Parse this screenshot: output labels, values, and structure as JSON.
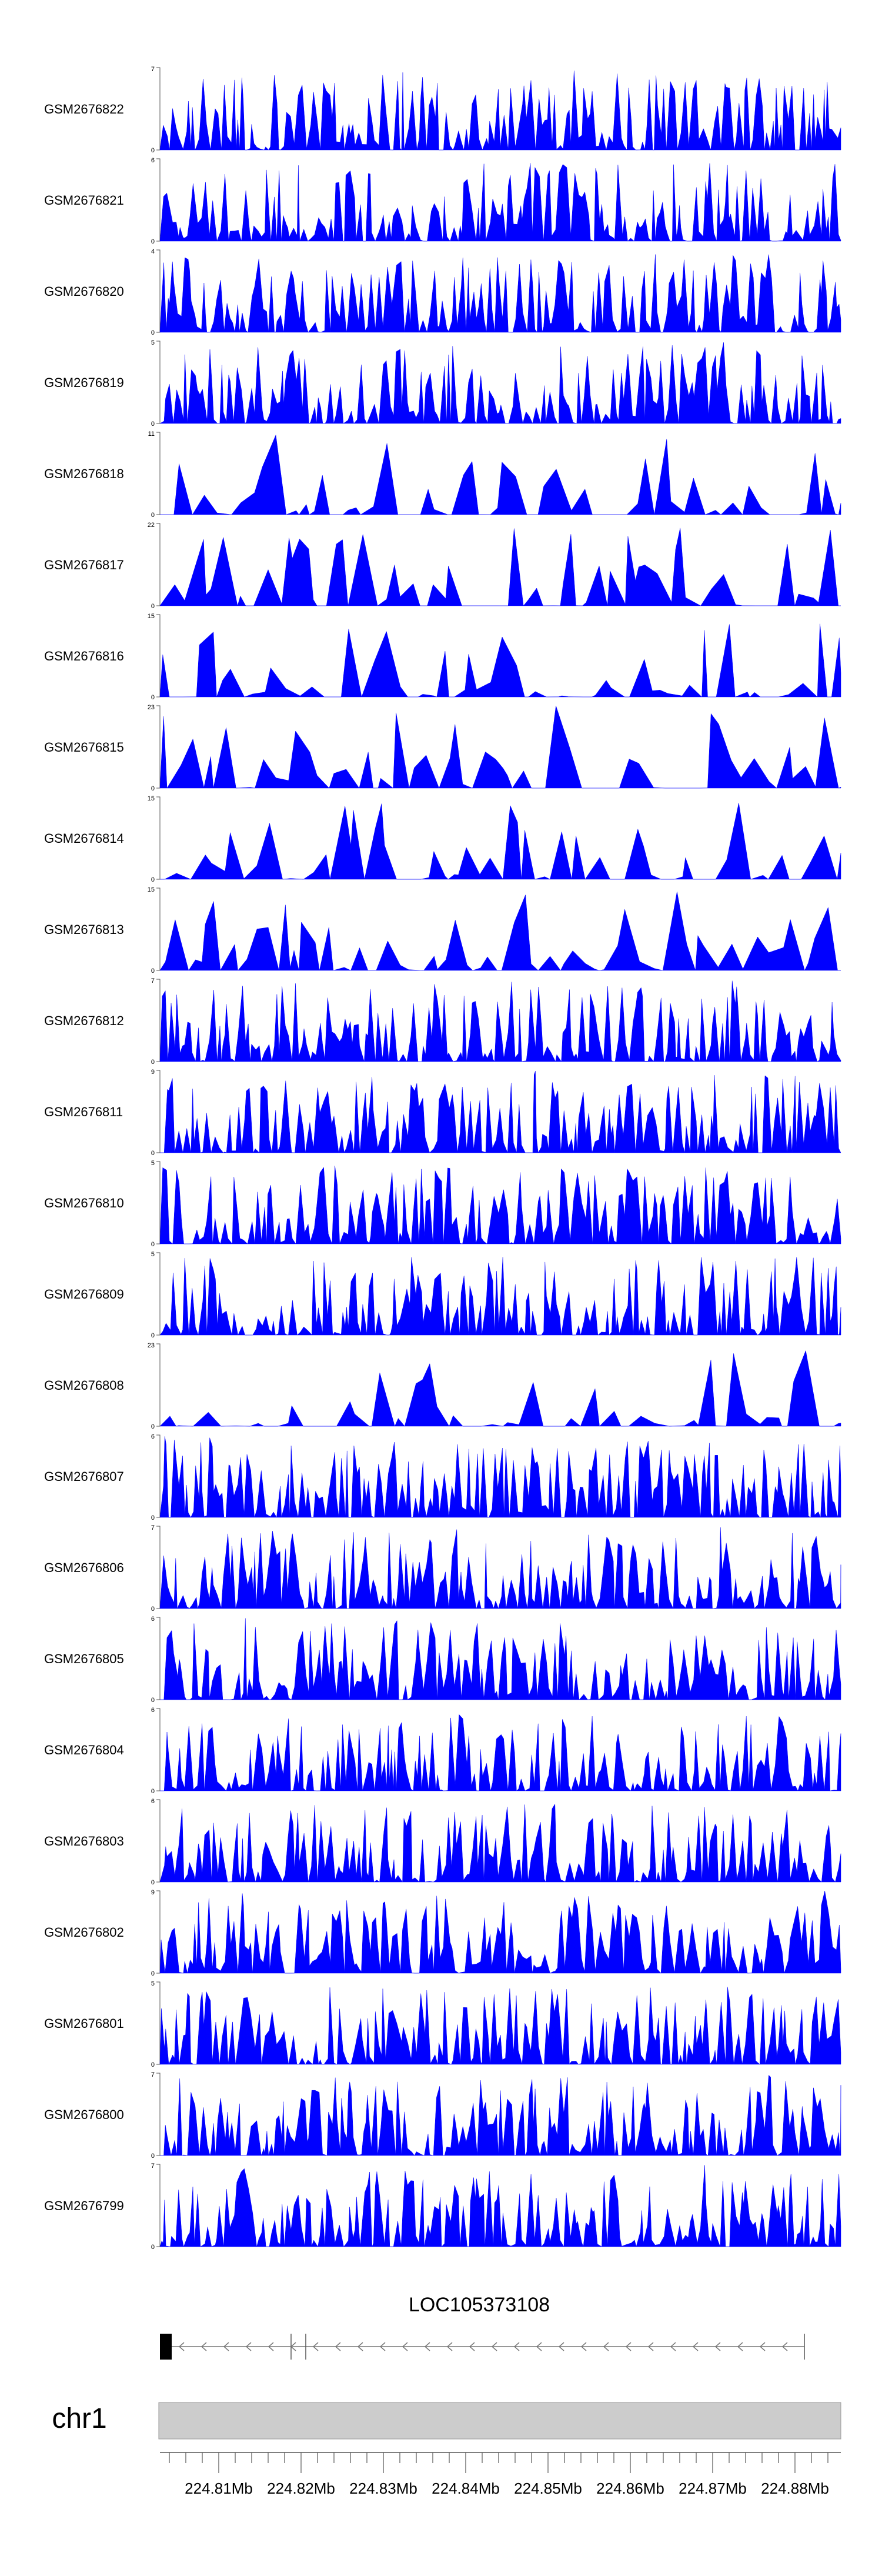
{
  "chart_data": {
    "type": "area",
    "color": "#0000ff",
    "chromosome": "chr1",
    "gene_label": "LOC105373108",
    "x_ticks": [
      "224.81Mb",
      "224.82Mb",
      "224.83Mb",
      "224.84Mb",
      "224.85Mb",
      "224.86Mb",
      "224.87Mb",
      "224.88Mb"
    ],
    "tracks": [
      {
        "name": "GSM2676822",
        "ymax": 7
      },
      {
        "name": "GSM2676821",
        "ymax": 6
      },
      {
        "name": "GSM2676820",
        "ymax": 4
      },
      {
        "name": "GSM2676819",
        "ymax": 5
      },
      {
        "name": "GSM2676818",
        "ymax": 11
      },
      {
        "name": "GSM2676817",
        "ymax": 22
      },
      {
        "name": "GSM2676816",
        "ymax": 15
      },
      {
        "name": "GSM2676815",
        "ymax": 23
      },
      {
        "name": "GSM2676814",
        "ymax": 15
      },
      {
        "name": "GSM2676813",
        "ymax": 15
      },
      {
        "name": "GSM2676812",
        "ymax": 7
      },
      {
        "name": "GSM2676811",
        "ymax": 9
      },
      {
        "name": "GSM2676810",
        "ymax": 5
      },
      {
        "name": "GSM2676809",
        "ymax": 5
      },
      {
        "name": "GSM2676808",
        "ymax": 23
      },
      {
        "name": "GSM2676807",
        "ymax": 6
      },
      {
        "name": "GSM2676806",
        "ymax": 7
      },
      {
        "name": "GSM2676805",
        "ymax": 6
      },
      {
        "name": "GSM2676804",
        "ymax": 6
      },
      {
        "name": "GSM2676803",
        "ymax": 6
      },
      {
        "name": "GSM2676802",
        "ymax": 9
      },
      {
        "name": "GSM2676801",
        "ymax": 5
      },
      {
        "name": "GSM2676800",
        "ymax": 7
      },
      {
        "name": "GSM2676799",
        "ymax": 7
      }
    ]
  }
}
